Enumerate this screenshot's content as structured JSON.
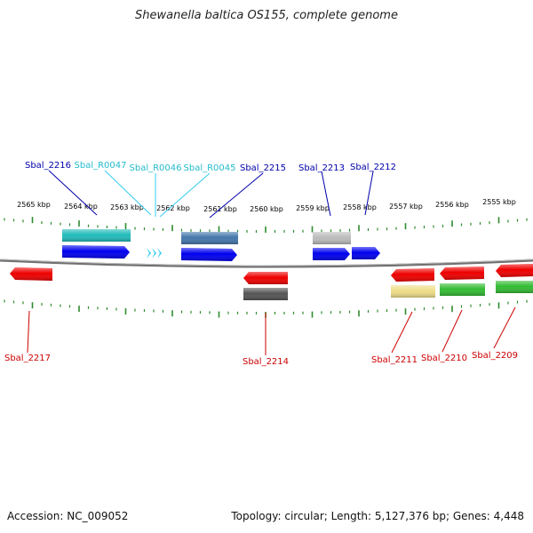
{
  "title": "Shewanella baltica OS155, complete genome",
  "footer": {
    "accession": "Accession: NC_009052",
    "stats": "Topology: circular; Length: 5,127,376 bp; Genes: 4,448"
  },
  "colors": {
    "backbone": "#777777",
    "tick": "#2e8b2e",
    "forward_label": "#0000aa",
    "rna_label": "#22bbcc",
    "reverse_label": "#cc0000"
  },
  "scale": {
    "unit": "kbp",
    "labels": [
      {
        "kbp": 2565,
        "text": "2565 kbp"
      },
      {
        "kbp": 2564,
        "text": "2564 kbp"
      },
      {
        "kbp": 2563,
        "text": "2563 kbp"
      },
      {
        "kbp": 2562,
        "text": "2562 kbp"
      },
      {
        "kbp": 2561,
        "text": "2561 kbp"
      },
      {
        "kbp": 2560,
        "text": "2560 kbp"
      },
      {
        "kbp": 2559,
        "text": "2559 kbp"
      },
      {
        "kbp": 2558,
        "text": "2558 kbp"
      },
      {
        "kbp": 2557,
        "text": "2557 kbp"
      },
      {
        "kbp": 2556,
        "text": "2556 kbp"
      },
      {
        "kbp": 2555,
        "text": "2555 kbp"
      }
    ]
  },
  "genes_forward": [
    {
      "id": "g2216",
      "label": "Sbal_2216",
      "color": "#0000ee",
      "kind": "gene"
    },
    {
      "id": "r0047",
      "label": "Sbal_R0047",
      "color": "#33ccee",
      "kind": "rna"
    },
    {
      "id": "r0046",
      "label": "Sbal_R0046",
      "color": "#33ccee",
      "kind": "rna"
    },
    {
      "id": "r0045",
      "label": "Sbal_R0045",
      "color": "#33ccee",
      "kind": "rna"
    },
    {
      "id": "g2215",
      "label": "Sbal_2215",
      "color": "#0000ee",
      "kind": "gene"
    },
    {
      "id": "g2213",
      "label": "Sbal_2213",
      "color": "#0000ee",
      "kind": "gene"
    },
    {
      "id": "g2212",
      "label": "Sbal_2212",
      "color": "#0000ee",
      "kind": "gene"
    }
  ],
  "genes_reverse": [
    {
      "id": "g2217",
      "label": "Sbal_2217",
      "color": "#ee0000"
    },
    {
      "id": "g2214",
      "label": "Sbal_2214",
      "color": "#ee0000"
    },
    {
      "id": "g2211",
      "label": "Sbal_2211",
      "color": "#ee0000"
    },
    {
      "id": "g2210",
      "label": "Sbal_2210",
      "color": "#ee0000"
    },
    {
      "id": "g2209",
      "label": "Sbal_2209",
      "color": "#ee0000"
    }
  ],
  "feature_boxes": [
    {
      "id": "cog-2216",
      "color": "#22bbbb"
    },
    {
      "id": "cog-2215",
      "color": "#4477aa"
    },
    {
      "id": "cog-2213",
      "color": "#bbbbbb"
    },
    {
      "id": "cog-2214",
      "color": "#555555"
    },
    {
      "id": "cog-2211",
      "color": "#eedd88"
    },
    {
      "id": "cog-2210",
      "color": "#33bb33"
    },
    {
      "id": "cog-2209",
      "color": "#33bb33"
    }
  ]
}
